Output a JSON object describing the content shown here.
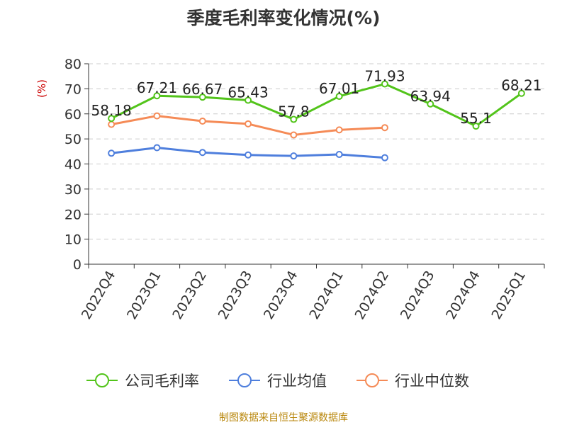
{
  "chart_data": {
    "type": "line",
    "title": "季度毛利率变化情况(%)",
    "ylabel": "(%)",
    "xlabel": "",
    "categories": [
      "2022Q4",
      "2023Q1",
      "2023Q2",
      "2023Q3",
      "2023Q4",
      "2024Q1",
      "2024Q2",
      "2024Q3",
      "2024Q4",
      "2025Q1"
    ],
    "ylim": [
      0,
      80
    ],
    "yticks": [
      0,
      10,
      20,
      30,
      40,
      50,
      60,
      70,
      80
    ],
    "grid": true,
    "legend_position": "bottom",
    "series": [
      {
        "name": "公司毛利率",
        "color": "#52c41a",
        "labeled": true,
        "values": [
          58.18,
          67.21,
          66.67,
          65.43,
          57.8,
          67.01,
          71.93,
          63.94,
          55.1,
          68.21
        ]
      },
      {
        "name": "行业均值",
        "color": "#4f7fdd",
        "labeled": false,
        "values": [
          44.3,
          46.5,
          44.6,
          43.6,
          43.2,
          43.8,
          42.5,
          null,
          null,
          null
        ]
      },
      {
        "name": "行业中位数",
        "color": "#f58b57",
        "labeled": false,
        "values": [
          55.8,
          59.2,
          57.1,
          56.0,
          51.6,
          53.6,
          54.5,
          null,
          null,
          null
        ]
      }
    ]
  },
  "footer": {
    "source": "制图数据来自恒生聚源数据库"
  }
}
